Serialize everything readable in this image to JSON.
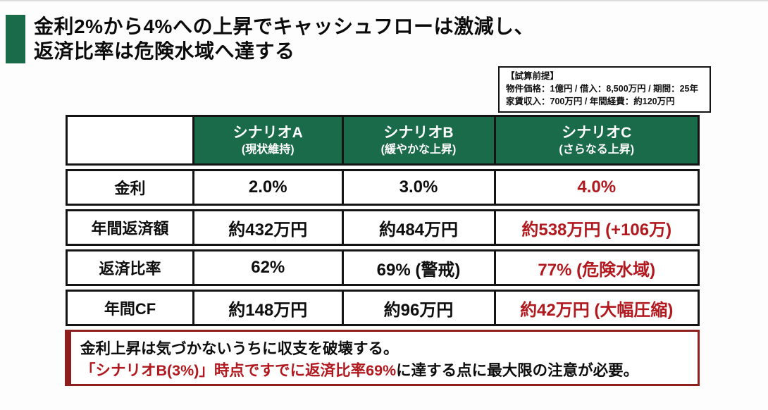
{
  "title": {
    "line1": "金利2%から4%への上昇でキャッシュフローは激減し、",
    "line2": "返済比率は危険水域へ達する"
  },
  "assumptions": {
    "heading": "【試算前提】",
    "line1": "物件価格：1億円 / 借入：8,500万円 / 期間：25年",
    "line2": "家賃収入：700万円 / 年間経費：約120万円"
  },
  "table": {
    "columns": [
      {
        "name": "シナリオA",
        "subtitle": "(現状維持)"
      },
      {
        "name": "シナリオB",
        "subtitle": "(緩やかな上昇)"
      },
      {
        "name": "シナリオC",
        "subtitle": "(さらなる上昇)"
      }
    ],
    "rows": [
      {
        "label": "金利",
        "cells": [
          "2.0%",
          "3.0%",
          "4.0%"
        ]
      },
      {
        "label": "年間返済額",
        "cells": [
          "約432万円",
          "約484万円",
          "約538万円 (+106万)"
        ]
      },
      {
        "label": "返済比率",
        "cells": [
          "62%",
          "69% (警戒)",
          "77% (危険水域)"
        ]
      },
      {
        "label": "年間CF",
        "cells": [
          "約148万円",
          "約96万円",
          "約42万円 (大幅圧縮)"
        ]
      }
    ]
  },
  "callout": {
    "line1": "金利上昇は気づかないうちに収支を破壊する。",
    "line2_red": "「シナリオB(3%)」時点ですでに返済比率69%",
    "line2_black": "に達する点に最大限の注意が必要。"
  },
  "colors": {
    "header_green": "#1a6b4a",
    "danger_red": "#b2191f",
    "callout_border": "#8e1f1f"
  }
}
